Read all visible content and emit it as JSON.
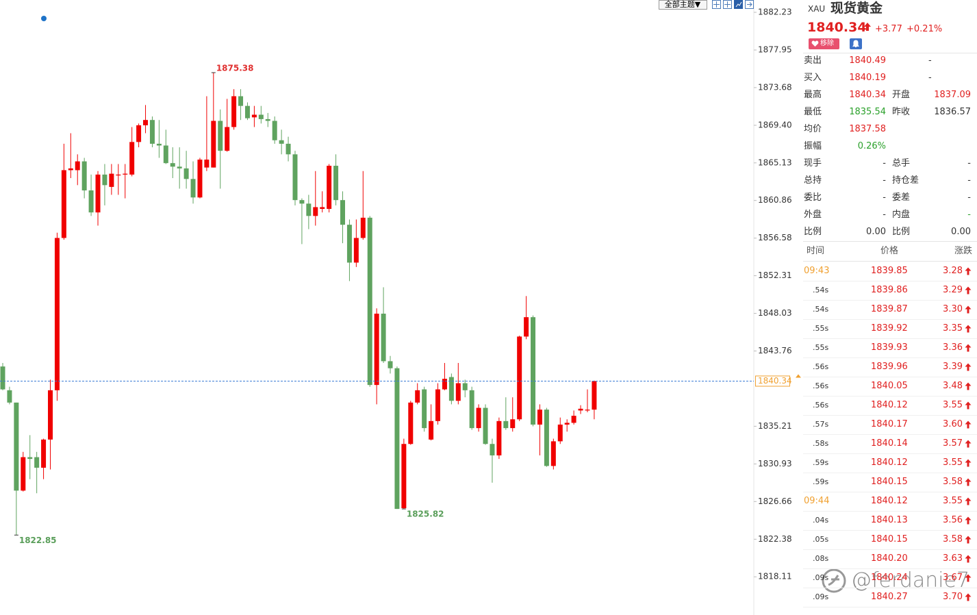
{
  "chart_data": {
    "type": "candlestick",
    "open": [
      1842.0,
      1839.3,
      1837.9,
      1827.9,
      1831.7,
      1831.7,
      1830.5,
      1833.7,
      1839.3,
      1856.6,
      1864.3,
      1864.3,
      1865.3,
      1862.0,
      1859.5,
      1863.8,
      1862.4,
      1863.7,
      1863.8,
      1863.8,
      1867.5,
      1869.4,
      1870.0,
      1867.3,
      1867.1,
      1865.1,
      1864.7,
      1864.5,
      1863.3,
      1861.2,
      1864.6,
      1864.6,
      1869.9,
      1866.5,
      1869.2,
      1872.7,
      1871.6,
      1870.3,
      1870.6,
      1870.1,
      1869.9,
      1867.7,
      1867.3,
      1866.1,
      1860.9,
      1860.5,
      1859.1,
      1859.9,
      1859.9,
      1864.8,
      1860.9,
      1858.1,
      1853.8,
      1856.6,
      1858.9,
      1839.9,
      1848.0,
      1842.6,
      1841.8,
      1825.9,
      1833.2,
      1837.9,
      1839.4,
      1833.7,
      1835.8,
      1839.4,
      1840.8,
      1838.1,
      1840.1,
      1839.3,
      1835.0,
      1837.3,
      1833.2,
      1831.9,
      1835.8,
      1835.0,
      1836.0,
      1845.4,
      1847.6,
      1835.4,
      1837.1,
      1830.7,
      1833.5,
      1835.4,
      1835.6,
      1837.0,
      1837.0,
      1837.1
    ],
    "high": [
      1842.4,
      1839.7,
      1837.9,
      1832.3,
      1834.2,
      1832.3,
      1833.8,
      1840.5,
      1857.2,
      1867.3,
      1868.5,
      1866.1,
      1865.7,
      1863.8,
      1864.2,
      1865.0,
      1865.0,
      1865.0,
      1865.0,
      1869.2,
      1869.6,
      1871.7,
      1870.4,
      1870.0,
      1868.9,
      1866.9,
      1866.9,
      1866.5,
      1865.3,
      1865.7,
      1872.7,
      1875.38,
      1871.2,
      1872.4,
      1873.5,
      1873.5,
      1872.0,
      1871.6,
      1871.6,
      1870.8,
      1870.4,
      1868.9,
      1868.1,
      1866.5,
      1861.1,
      1861.5,
      1864.2,
      1861.9,
      1865.0,
      1866.1,
      1861.9,
      1858.7,
      1858.7,
      1864.2,
      1859.1,
      1848.6,
      1851.0,
      1843.2,
      1842.0,
      1833.8,
      1838.1,
      1840.1,
      1839.7,
      1837.7,
      1840.1,
      1842.4,
      1841.2,
      1842.4,
      1840.5,
      1839.7,
      1837.7,
      1837.7,
      1833.8,
      1836.2,
      1838.5,
      1838.5,
      1845.5,
      1850.0,
      1847.8,
      1837.7,
      1837.3,
      1833.8,
      1836.2,
      1836.0,
      1837.0,
      1837.6,
      1839.4,
      1840.4
    ],
    "low": [
      1839.3,
      1837.7,
      1822.85,
      1827.8,
      1829.2,
      1827.6,
      1829.2,
      1830.3,
      1838.1,
      1856.4,
      1863.4,
      1862.6,
      1861.1,
      1859.1,
      1858.0,
      1860.3,
      1861.5,
      1861.5,
      1861.1,
      1863.6,
      1866.9,
      1868.5,
      1866.9,
      1865.7,
      1865.0,
      1863.4,
      1862.2,
      1862.2,
      1860.5,
      1861.1,
      1864.2,
      1864.6,
      1862.2,
      1866.4,
      1868.9,
      1870.0,
      1870.0,
      1869.2,
      1869.6,
      1869.2,
      1867.3,
      1866.1,
      1865.3,
      1860.3,
      1855.9,
      1857.6,
      1858.0,
      1859.5,
      1859.5,
      1860.3,
      1856.0,
      1851.7,
      1853.3,
      1856.4,
      1839.7,
      1837.7,
      1842.4,
      1841.2,
      1825.82,
      1825.82,
      1833.1,
      1837.7,
      1834.6,
      1833.6,
      1835.4,
      1839.3,
      1837.7,
      1837.7,
      1838.5,
      1834.8,
      1834.6,
      1833.1,
      1828.8,
      1831.5,
      1834.8,
      1834.6,
      1835.8,
      1845.1,
      1835.2,
      1831.9,
      1830.6,
      1830.3,
      1833.2,
      1834.6,
      1835.4,
      1836.6,
      1836.8,
      1836.0
    ],
    "close": [
      1839.4,
      1837.9,
      1827.9,
      1831.7,
      1831.5,
      1830.5,
      1833.7,
      1839.3,
      1856.6,
      1864.3,
      1864.5,
      1865.3,
      1862.0,
      1859.5,
      1863.8,
      1862.6,
      1863.9,
      1863.8,
      1863.9,
      1867.5,
      1869.4,
      1870.0,
      1867.3,
      1867.1,
      1865.1,
      1864.7,
      1864.5,
      1863.3,
      1861.2,
      1865.5,
      1865.5,
      1869.9,
      1866.5,
      1869.2,
      1872.7,
      1871.6,
      1870.2,
      1870.6,
      1870.1,
      1869.9,
      1867.7,
      1867.3,
      1866.1,
      1860.9,
      1860.5,
      1859.1,
      1860.1,
      1860.1,
      1864.8,
      1860.9,
      1858.1,
      1853.8,
      1856.6,
      1858.9,
      1839.9,
      1848.0,
      1842.6,
      1841.8,
      1825.82,
      1833.2,
      1837.9,
      1839.3,
      1835.0,
      1835.8,
      1839.4,
      1840.6,
      1838.1,
      1840.1,
      1839.3,
      1835.0,
      1837.3,
      1833.2,
      1831.9,
      1835.8,
      1835.0,
      1836.0,
      1845.4,
      1847.6,
      1835.4,
      1837.1,
      1830.7,
      1833.5,
      1835.4,
      1835.6,
      1836.4,
      1837.2,
      1837.1,
      1840.34
    ],
    "up_color": "#f00000",
    "down_color": "#5fa35f",
    "ylim": [
      1813.77,
      1883.63
    ],
    "yticks": [
      1882.23,
      1877.95,
      1873.68,
      {
        "value": 1869.4,
        "label": "1869.40"
      },
      1865.13,
      1860.86,
      1856.58,
      1852.31,
      1848.03,
      1843.76,
      1835.21,
      1830.93,
      1826.66,
      1822.38,
      1818.11
    ],
    "last_price": 1840.34,
    "annotations": [
      1875.38,
      1825.82,
      1822.85
    ],
    "grid": false
  },
  "toolbar": {
    "theme_button": "全部主题▼"
  },
  "quote": {
    "symbol": "XAU",
    "name": "现货黄金",
    "price": "1840.34",
    "change": "+3.77",
    "change_pct": "+0.21%",
    "remove_button": "移除"
  },
  "details": [
    [
      "卖出",
      "1840.49",
      "-"
    ],
    [
      "买入",
      "1840.19",
      "-"
    ],
    [
      "最高",
      "1840.34",
      "开盘",
      "1837.09"
    ],
    [
      "最低",
      "1835.54",
      "昨收",
      "1836.57"
    ],
    [
      "均价",
      "1837.58"
    ],
    [
      "振幅",
      "0.26%"
    ],
    [
      "现手",
      "-",
      "总手",
      "-"
    ],
    [
      "总持",
      "-",
      "持仓差",
      "-"
    ],
    [
      "委比",
      "-",
      "委差",
      "-"
    ],
    [
      "外盘",
      "-",
      "内盘",
      "-"
    ],
    [
      "比例",
      "0.00",
      "比例",
      "0.00"
    ]
  ],
  "ticks_table": {
    "headers": [
      "时间",
      "价格",
      "涨跌"
    ],
    "rows": [
      [
        "09:43",
        "1839.85",
        "3.28"
      ],
      [
        ".54s",
        "1839.86",
        "3.29"
      ],
      [
        ".54s",
        "1839.87",
        "3.30"
      ],
      [
        ".55s",
        "1839.92",
        "3.35"
      ],
      [
        ".55s",
        "1839.93",
        "3.36"
      ],
      [
        ".56s",
        "1839.96",
        "3.39"
      ],
      [
        ".56s",
        "1840.05",
        "3.48"
      ],
      [
        ".56s",
        "1840.12",
        "3.55"
      ],
      [
        ".57s",
        "1840.17",
        "3.60"
      ],
      [
        ".58s",
        "1840.14",
        "3.57"
      ],
      [
        ".59s",
        "1840.12",
        "3.55"
      ],
      [
        ".59s",
        "1840.15",
        "3.58"
      ],
      [
        "09:44",
        "1840.12",
        "3.55"
      ],
      [
        ".04s",
        "1840.13",
        "3.56"
      ],
      [
        ".05s",
        "1840.15",
        "3.58"
      ],
      [
        ".08s",
        "1840.20",
        "3.63"
      ],
      [
        ".09s",
        "1840.24",
        "3.67"
      ],
      [
        ".09s",
        "1840.27",
        "3.70"
      ]
    ]
  },
  "watermark": "@ferdanie7"
}
